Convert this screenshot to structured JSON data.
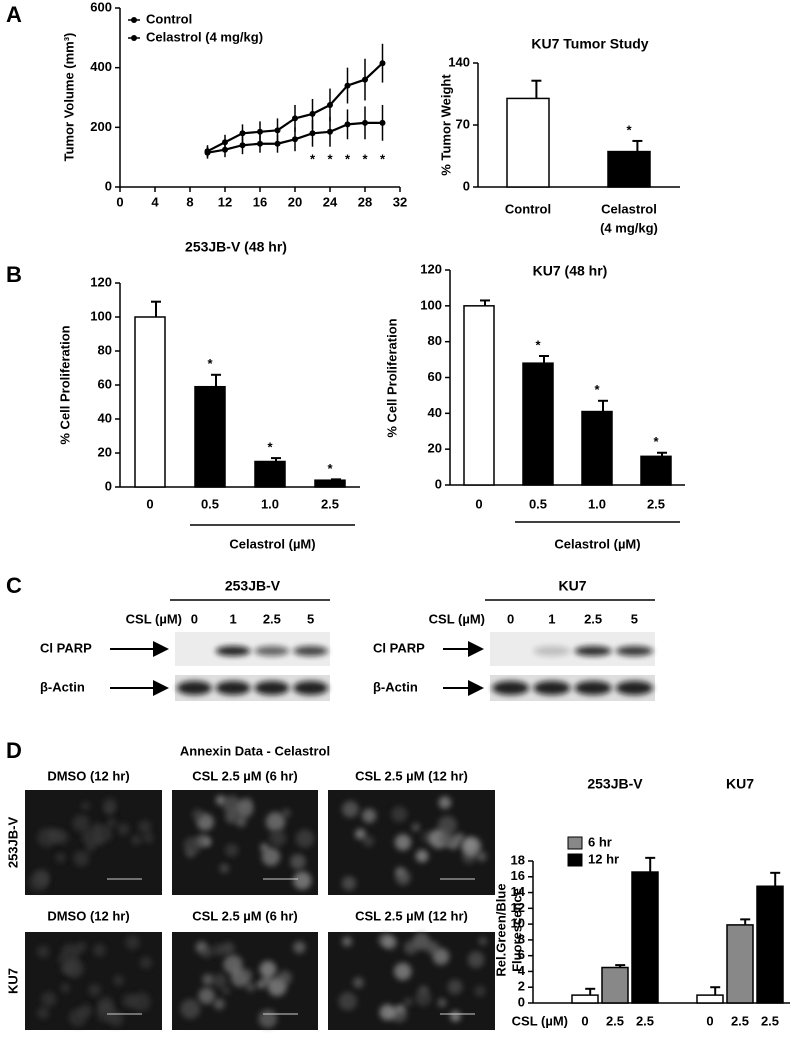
{
  "panel_labels": [
    "A",
    "B",
    "C",
    "D"
  ],
  "chart_data": [
    {
      "type": "line",
      "ylabel": "Tumor Volume (mm³)",
      "x": [
        10,
        12,
        14,
        16,
        18,
        20,
        22,
        24,
        26,
        28,
        30
      ],
      "series": [
        {
          "name": "Control",
          "color": "#000000",
          "values": [
            120,
            150,
            180,
            185,
            190,
            230,
            245,
            275,
            340,
            360,
            415
          ],
          "errors": [
            20,
            25,
            30,
            35,
            40,
            45,
            50,
            55,
            60,
            70,
            65
          ]
        },
        {
          "name": "Celastrol (4 mg/kg)",
          "color": "#000000",
          "values": [
            115,
            125,
            140,
            145,
            145,
            160,
            180,
            185,
            210,
            215,
            215
          ],
          "errors": [
            20,
            25,
            30,
            30,
            30,
            40,
            45,
            50,
            50,
            55,
            60
          ]
        }
      ],
      "annotations": [
        {
          "text": "*",
          "x": 22
        },
        {
          "text": "*",
          "x": 24
        },
        {
          "text": "*",
          "x": 26
        },
        {
          "text": "*",
          "x": 28
        },
        {
          "text": "*",
          "x": 30
        }
      ],
      "xlim": [
        0,
        32
      ],
      "xticks": [
        0,
        4,
        8,
        12,
        16,
        20,
        24,
        28,
        32
      ],
      "ylim": [
        0,
        600
      ],
      "yticks": [
        0,
        200,
        400,
        600
      ],
      "legend": "upper left"
    },
    {
      "type": "bar",
      "title": "KU7 Tumor Study",
      "ylabel": "% Tumor Weight",
      "categories": [
        [
          "Control"
        ],
        [
          "Celastrol",
          "(4 mg/kg)"
        ]
      ],
      "values": [
        100,
        40
      ],
      "errors": [
        20,
        12
      ],
      "colors": [
        "#ffffff",
        "#000000"
      ],
      "markers": [
        null,
        "*"
      ],
      "ylim": [
        0,
        140
      ],
      "yticks": [
        0,
        70,
        140
      ]
    },
    {
      "type": "bar",
      "title": "253JB-V (48 hr)",
      "ylabel": "% Cell Proliferation",
      "xlabel": "Celastrol (µM)",
      "categories": [
        "0",
        "0.5",
        "1.0",
        "2.5"
      ],
      "values": [
        100,
        59,
        15,
        4
      ],
      "errors": [
        9,
        7,
        2,
        0.5
      ],
      "colors": [
        "#ffffff",
        "#000000",
        "#000000",
        "#000000"
      ],
      "markers": [
        null,
        "*",
        "*",
        "*"
      ],
      "ylim": [
        0,
        120
      ],
      "yticks": [
        0,
        20,
        40,
        60,
        80,
        100,
        120
      ]
    },
    {
      "type": "bar",
      "title": "KU7 (48 hr)",
      "ylabel": "% Cell Proliferation",
      "xlabel": "Celastrol (µM)",
      "categories": [
        "0",
        "0.5",
        "1.0",
        "2.5"
      ],
      "values": [
        100,
        68,
        41,
        16
      ],
      "errors": [
        3,
        4,
        6,
        2
      ],
      "colors": [
        "#ffffff",
        "#000000",
        "#000000",
        "#000000"
      ],
      "markers": [
        null,
        "*",
        "*",
        "*"
      ],
      "ylim": [
        0,
        120
      ],
      "yticks": [
        0,
        20,
        40,
        60,
        80,
        100,
        120
      ]
    },
    {
      "type": "bar",
      "ylabel": [
        "Rel.Green/Blue",
        "Fluorescence"
      ],
      "xlabel": "CSL (µM)",
      "groups": [
        "253JB-V",
        "KU7"
      ],
      "categories": [
        "0",
        "2.5",
        "2.5",
        "0",
        "2.5",
        "2.5"
      ],
      "values": [
        1,
        4.5,
        16.6,
        1,
        9.9,
        14.8
      ],
      "errors": [
        0.8,
        0.3,
        1.8,
        1,
        0.7,
        1.7
      ],
      "colors": [
        "#ffffff",
        "#888888",
        "#000000",
        "#ffffff",
        "#888888",
        "#000000"
      ],
      "legend": [
        {
          "name": "6 hr",
          "color": "#888888"
        },
        {
          "name": "12 hr",
          "color": "#000000"
        }
      ],
      "ylim": [
        0,
        18
      ],
      "yticks": [
        0,
        2,
        4,
        6,
        8,
        10,
        12,
        14,
        16,
        18
      ]
    }
  ],
  "blots": [
    {
      "title": "253JB-V",
      "dose_label": "CSL (µM)",
      "doses": [
        "0",
        "1",
        "2.5",
        "5"
      ],
      "rows": [
        "Cl PARP",
        "β-Actin"
      ]
    },
    {
      "title": "KU7",
      "dose_label": "CSL (µM)",
      "doses": [
        "0",
        "1",
        "2.5",
        "5"
      ],
      "rows": [
        "Cl PARP",
        "β-Actin"
      ]
    }
  ],
  "annexin": {
    "title": "Annexin Data - Celastrol",
    "rows": [
      {
        "label": "253JB-V",
        "captions": [
          "DMSO (12 hr)",
          "CSL 2.5 µM (6 hr)",
          "CSL 2.5 µM (12 hr)"
        ]
      },
      {
        "label": "KU7",
        "captions": [
          "DMSO (12 hr)",
          "CSL 2.5 µM (6 hr)",
          "CSL 2.5 µM (12 hr)"
        ]
      }
    ]
  }
}
